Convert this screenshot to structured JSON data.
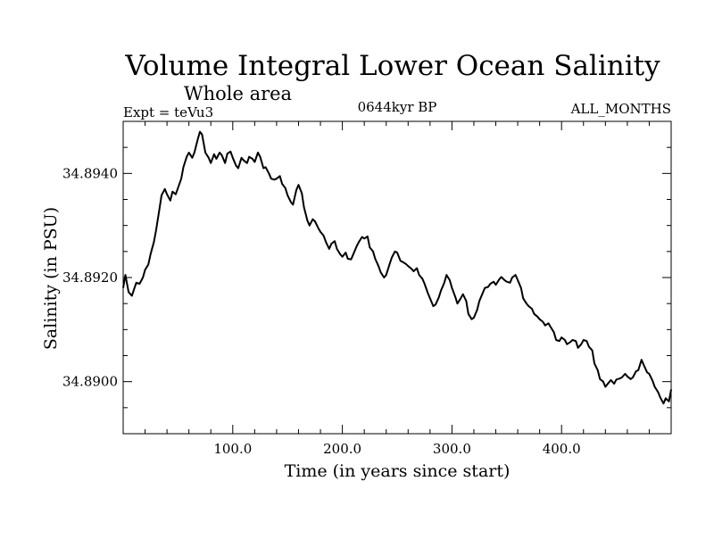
{
  "chart_data": {
    "type": "line",
    "title": "Volume Integral Lower Ocean Salinity",
    "subtitle": "Whole area",
    "left_label": "Expt = teVu3",
    "center_label": "0644kyr BP",
    "right_label": "ALL_MONTHS",
    "xlabel": "Time (in years since start)",
    "ylabel": "Salinity (in PSU)",
    "xlim": [
      0,
      500
    ],
    "ylim": [
      34.889,
      34.895
    ],
    "x_ticks": [
      100,
      200,
      300,
      400
    ],
    "x_tick_labels": [
      "100.0",
      "200.0",
      "300.0",
      "400.0"
    ],
    "y_ticks": [
      34.89,
      34.892,
      34.894
    ],
    "y_tick_labels": [
      "34.8900",
      "34.8920",
      "34.8940"
    ],
    "grid": false,
    "line_color": "#000000",
    "series": [
      {
        "x": [
          0,
          2,
          5,
          8,
          10,
          12,
          15,
          18,
          20,
          23,
          25,
          28,
          30,
          33,
          35,
          38,
          40,
          43,
          45,
          48,
          50,
          53,
          55,
          58,
          60,
          63,
          65,
          68,
          70,
          72,
          75,
          78,
          80,
          83,
          85,
          88,
          90,
          93,
          95,
          98,
          100,
          103,
          105,
          108,
          110,
          113,
          115,
          118,
          120,
          123,
          125,
          128,
          130,
          133,
          135,
          138,
          140,
          143,
          145,
          148,
          150,
          153,
          155,
          158,
          160,
          163,
          165,
          168,
          170,
          173,
          175,
          178,
          180,
          183,
          185,
          188,
          190,
          193,
          195,
          198,
          200,
          203,
          205,
          208,
          210,
          213,
          215,
          218,
          220,
          223,
          225,
          228,
          230,
          233,
          235,
          238,
          240,
          243,
          245,
          248,
          250,
          253,
          255,
          258,
          260,
          263,
          265,
          268,
          270,
          273,
          275,
          278,
          280,
          283,
          285,
          288,
          290,
          293,
          295,
          298,
          300,
          303,
          305,
          308,
          310,
          313,
          315,
          318,
          320,
          323,
          325,
          328,
          330,
          333,
          335,
          338,
          340,
          343,
          345,
          348,
          350,
          353,
          355,
          358,
          360,
          363,
          365,
          368,
          370,
          373,
          375,
          378,
          380,
          383,
          385,
          388,
          390,
          393,
          395,
          398,
          400,
          403,
          405,
          408,
          410,
          413,
          415,
          418,
          420,
          423,
          425,
          428,
          430,
          433,
          435,
          438,
          440,
          443,
          445,
          448,
          450,
          453,
          455,
          458,
          460,
          463,
          465,
          468,
          470,
          473,
          475,
          478,
          480,
          483,
          485,
          488,
          490,
          493,
          495,
          498,
          500
        ],
        "values": [
          34.8918,
          34.89205,
          34.89172,
          34.89165,
          34.89178,
          34.8919,
          34.89188,
          34.892,
          34.89215,
          34.89225,
          34.89245,
          34.89268,
          34.8929,
          34.8933,
          34.89358,
          34.8937,
          34.8936,
          34.89348,
          34.89365,
          34.8936,
          34.89372,
          34.8939,
          34.89412,
          34.89432,
          34.8944,
          34.8943,
          34.8944,
          34.89465,
          34.8948,
          34.89475,
          34.8944,
          34.8943,
          34.8942,
          34.89437,
          34.89428,
          34.8944,
          34.89435,
          34.8942,
          34.89438,
          34.89442,
          34.8943,
          34.89415,
          34.8941,
          34.8943,
          34.89425,
          34.8942,
          34.89432,
          34.89428,
          34.89422,
          34.8944,
          34.89432,
          34.8941,
          34.89412,
          34.894,
          34.8939,
          34.89388,
          34.8939,
          34.89395,
          34.8938,
          34.89372,
          34.89358,
          34.89345,
          34.8934,
          34.89368,
          34.89378,
          34.89362,
          34.89335,
          34.8931,
          34.893,
          34.89312,
          34.89308,
          34.89295,
          34.89288,
          34.8928,
          34.89268,
          34.89255,
          34.89265,
          34.8927,
          34.89255,
          34.89245,
          34.8924,
          34.89248,
          34.89236,
          34.89235,
          34.89245,
          34.8926,
          34.89268,
          34.89278,
          34.89275,
          34.89279,
          34.89258,
          34.8925,
          34.89236,
          34.89222,
          34.8921,
          34.892,
          34.89205,
          34.89225,
          34.89238,
          34.8925,
          34.89248,
          34.89232,
          34.8923,
          34.89226,
          34.89222,
          34.89217,
          34.89212,
          34.89218,
          34.89205,
          34.89198,
          34.89188,
          34.8917,
          34.8916,
          34.89145,
          34.89148,
          34.89162,
          34.89175,
          34.8919,
          34.89205,
          34.89195,
          34.8918,
          34.89163,
          34.8915,
          34.8916,
          34.89168,
          34.89155,
          34.8913,
          34.8912,
          34.89123,
          34.89138,
          34.89155,
          34.8917,
          34.8918,
          34.89182,
          34.89188,
          34.89192,
          34.89186,
          34.89196,
          34.89201,
          34.89195,
          34.89192,
          34.8919,
          34.892,
          34.89205,
          34.89195,
          34.8918,
          34.8916,
          34.8915,
          34.89145,
          34.8914,
          34.8913,
          34.89125,
          34.8912,
          34.89115,
          34.89108,
          34.89112,
          34.89105,
          34.89095,
          34.8908,
          34.89078,
          34.89085,
          34.8908,
          34.89072,
          34.89076,
          34.8908,
          34.89078,
          34.89065,
          34.89072,
          34.8908,
          34.89078,
          34.89067,
          34.8906,
          34.89035,
          34.89022,
          34.89005,
          34.89,
          34.8899,
          34.88998,
          34.89003,
          34.88996,
          34.89004,
          34.89006,
          34.89008,
          34.89015,
          34.8901,
          34.89005,
          34.89008,
          34.8902,
          34.89022,
          34.89042,
          34.89032,
          34.89018,
          34.89015,
          34.89002,
          34.8899,
          34.8898,
          34.8897,
          34.88958,
          34.88968,
          34.88962,
          34.88985
        ]
      }
    ]
  }
}
